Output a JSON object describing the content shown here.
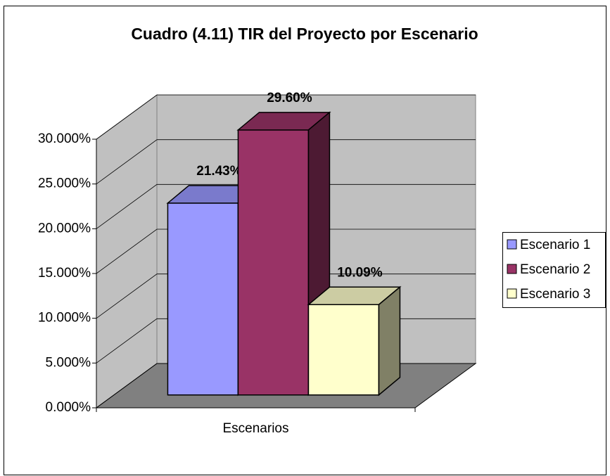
{
  "chart_data": {
    "type": "bar3d",
    "title": "Cuadro (4.11) TIR del Proyecto por Escenario",
    "categories": [
      "Escenarios"
    ],
    "series": [
      {
        "name": "Escenario 1",
        "color": "#9999ff",
        "values": [
          21.43
        ],
        "value_labels": [
          "21.43%"
        ]
      },
      {
        "name": "Escenario 2",
        "color": "#993366",
        "values": [
          29.6
        ],
        "value_labels": [
          "29.60%"
        ]
      },
      {
        "name": "Escenario 3",
        "color": "#ffffcc",
        "values": [
          10.09
        ],
        "value_labels": [
          "10.09%"
        ]
      }
    ],
    "ylim": [
      0,
      30
    ],
    "yticks": [
      {
        "value": 0,
        "label": "0.000%"
      },
      {
        "value": 5,
        "label": "5.000%"
      },
      {
        "value": 10,
        "label": "10.000%"
      },
      {
        "value": 15,
        "label": "15.000%"
      },
      {
        "value": 20,
        "label": "20.000%"
      },
      {
        "value": 25,
        "label": "25.000%"
      },
      {
        "value": 30,
        "label": "30.000%"
      }
    ],
    "grid": true,
    "legend": "right"
  }
}
